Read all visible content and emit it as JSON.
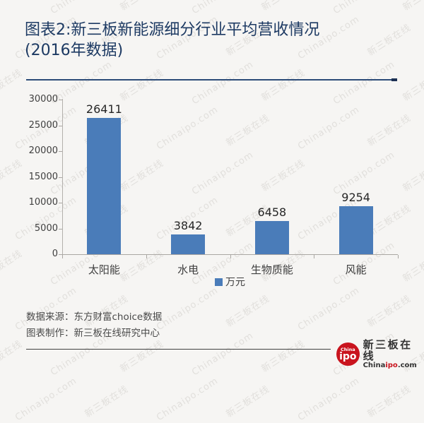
{
  "page": {
    "background": "#f6f5f3"
  },
  "header": {
    "title_line1": "图表2:新三板新能源细分行业平均营收情况",
    "title_line2": "(2016年数据)",
    "title_color": "#1d3a63",
    "underline_color": "#2c4b78"
  },
  "chart_data": {
    "type": "bar",
    "categories": [
      "太阳能",
      "水电",
      "生物质能",
      "风能"
    ],
    "values": [
      26411,
      3842,
      6458,
      9254
    ],
    "series_name": "万元",
    "title": "",
    "xlabel": "",
    "ylabel": "",
    "ylim": [
      0,
      30000
    ],
    "ytick_step": 5000,
    "ytick_labels": [
      "0",
      "5000",
      "10000",
      "15000",
      "20000",
      "25000",
      "30000"
    ],
    "data_labels": [
      "26411",
      "3842",
      "6458",
      "9254"
    ],
    "bar_color": "#4a7cb9",
    "grid": false,
    "legend_position": "bottom-center"
  },
  "footer": {
    "source_label": "数据来源：东方财富choice数据",
    "maker_label": "图表制作：新三板在线研究中心"
  },
  "logo": {
    "badge_top": "China",
    "badge_main": "ipo",
    "name_cn": "新三板在线",
    "domain_prefix": "China",
    "domain_mid": "ipo",
    "domain_suffix": ".com",
    "red": "#c9141e"
  },
  "watermark": {
    "texts": [
      "新三板在线",
      "Chinaipo.com"
    ]
  }
}
